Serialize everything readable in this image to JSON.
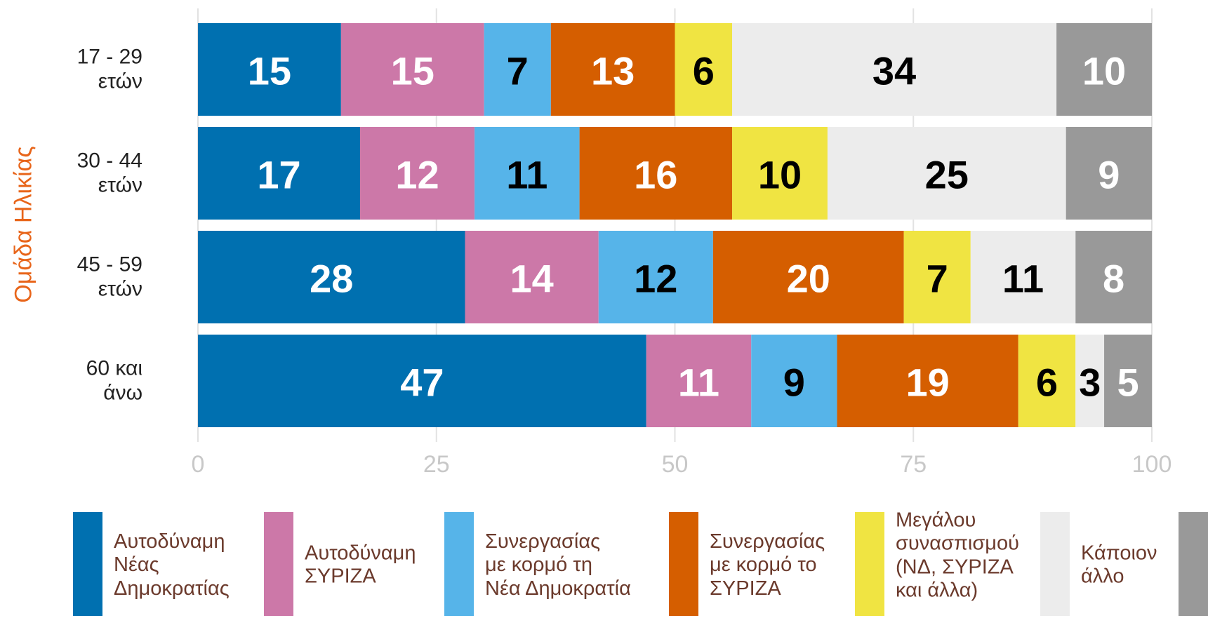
{
  "chart_data": {
    "type": "stacked_barh",
    "ylabel": "Ομάδα Ηλικίας",
    "categories": [
      "17 - 29\nετών",
      "30 - 44\nετών",
      "45 - 59\nετών",
      "60 και\nάνω"
    ],
    "series": [
      {
        "name": "Αυτοδύναμη\nΝέας\nΔημοκρατίας",
        "color": "#0070b0",
        "label_color": "#ffffff",
        "values": [
          15,
          17,
          28,
          47
        ]
      },
      {
        "name": "Αυτοδύναμη\nΣΥΡΙΖΑ",
        "color": "#cc78a8",
        "label_color": "#ffffff",
        "values": [
          15,
          12,
          14,
          11
        ]
      },
      {
        "name": "Συνεργασίας\nμε κορμό τη\nΝέα Δημοκρατία",
        "color": "#56b4e9",
        "label_color": "#000000",
        "values": [
          7,
          11,
          12,
          9
        ]
      },
      {
        "name": "Συνεργασίας\nμε κορμό το\nΣΥΡΙΖΑ",
        "color": "#d55e00",
        "label_color": "#ffffff",
        "values": [
          13,
          16,
          20,
          19
        ]
      },
      {
        "name": "Μεγάλου\nσυνασπισμού\n(ΝΔ, ΣΥΡΙΖΑ\nκαι άλλα)",
        "color": "#f0e442",
        "label_color": "#000000",
        "values": [
          6,
          10,
          7,
          6
        ]
      },
      {
        "name": "Κάποιον\nάλλο",
        "color": "#ececec",
        "label_color": "#000000",
        "values": [
          34,
          25,
          11,
          3
        ]
      },
      {
        "color": "#999999",
        "label_color": "#ffffff",
        "values": [
          10,
          9,
          8,
          5
        ]
      }
    ],
    "xlim": [
      0,
      100
    ],
    "xticks": [
      0,
      25,
      50,
      75,
      100
    ],
    "grid": true
  }
}
